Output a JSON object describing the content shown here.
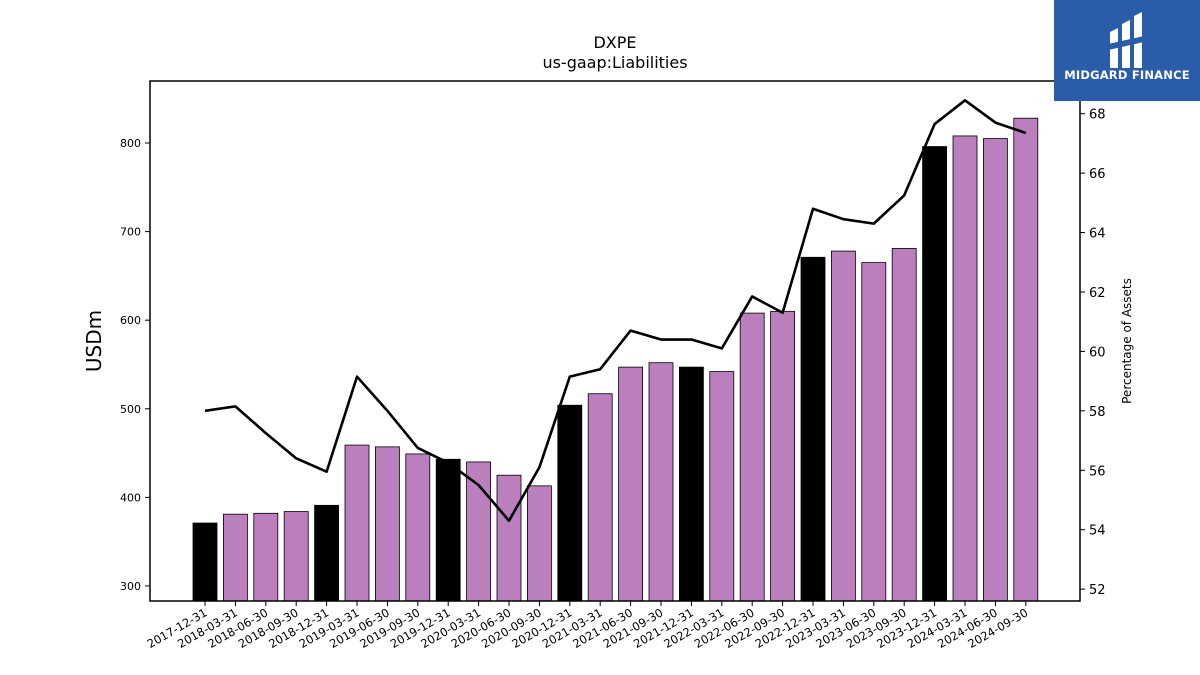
{
  "brand": {
    "name": "MIDGARD FINANCE",
    "logo_icon": "midgard-logo-icon",
    "bg_color": "#2a5caa"
  },
  "chart_data": {
    "type": "bar",
    "title": "DXPE",
    "subtitle": "us-gaap:Liabilities",
    "ylabel": "USDm",
    "y2label": "Percentage of Assets",
    "ylim": [
      283,
      870
    ],
    "y2lim": [
      51.6,
      69.1
    ],
    "yticks": [
      300,
      400,
      500,
      600,
      700,
      800
    ],
    "y2ticks": [
      52,
      54,
      56,
      58,
      60,
      62,
      64,
      66,
      68
    ],
    "categories": [
      "2017-12-31",
      "2018-03-31",
      "2018-06-30",
      "2018-09-30",
      "2018-12-31",
      "2019-03-31",
      "2019-06-30",
      "2019-09-30",
      "2019-12-31",
      "2020-03-31",
      "2020-06-30",
      "2020-09-30",
      "2020-12-31",
      "2021-03-31",
      "2021-06-30",
      "2021-09-30",
      "2021-12-31",
      "2022-03-31",
      "2022-06-30",
      "2022-09-30",
      "2022-12-31",
      "2023-03-31",
      "2023-06-30",
      "2023-09-30",
      "2023-12-31",
      "2024-03-31",
      "2024-06-30",
      "2024-09-30"
    ],
    "series": [
      {
        "type": "bar",
        "axis": "left",
        "values": [
          371,
          381,
          382,
          384,
          391,
          459,
          457,
          449,
          443,
          440,
          425,
          413,
          504,
          517,
          547,
          552,
          547,
          542,
          608,
          610,
          671,
          678,
          665,
          681,
          796,
          808,
          805,
          828
        ],
        "colors": [
          "#000000",
          "#bb7fbd",
          "#bb7fbd",
          "#bb7fbd",
          "#000000",
          "#bb7fbd",
          "#bb7fbd",
          "#bb7fbd",
          "#000000",
          "#bb7fbd",
          "#bb7fbd",
          "#bb7fbd",
          "#000000",
          "#bb7fbd",
          "#bb7fbd",
          "#bb7fbd",
          "#000000",
          "#bb7fbd",
          "#bb7fbd",
          "#bb7fbd",
          "#000000",
          "#bb7fbd",
          "#bb7fbd",
          "#bb7fbd",
          "#000000",
          "#bb7fbd",
          "#bb7fbd",
          "#bb7fbd"
        ]
      },
      {
        "type": "line",
        "axis": "right",
        "color": "#000000",
        "values": [
          58.0,
          58.15,
          57.25,
          56.4,
          55.95,
          59.15,
          58.0,
          56.75,
          56.25,
          55.5,
          54.3,
          56.1,
          59.15,
          59.4,
          60.7,
          60.4,
          60.4,
          60.1,
          61.85,
          61.3,
          64.8,
          64.45,
          64.3,
          65.25,
          67.65,
          68.45,
          67.7,
          67.35
        ]
      }
    ],
    "colors": {
      "year_end_bar": "#000000",
      "quarter_bar": "#bb7fbd",
      "line": "#000000"
    },
    "grid": false,
    "legend": "none"
  }
}
